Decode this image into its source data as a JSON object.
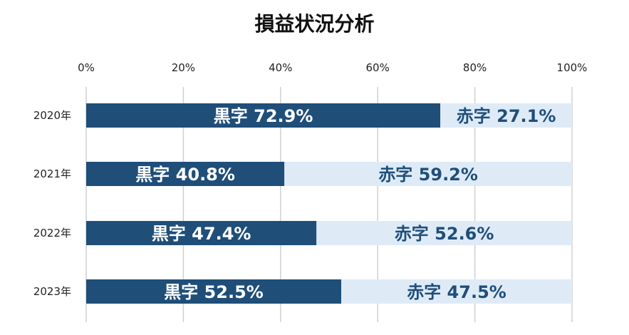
{
  "colors": {
    "surplus": "#1f4e79",
    "deficit": "#deebf7",
    "surplus_text": "#ffffff",
    "deficit_text": "#1f4e79",
    "grid": "#d0d0d0"
  },
  "chart_data": {
    "type": "bar",
    "orientation": "horizontal",
    "stacked": true,
    "title": "損益状況分析",
    "xlim": [
      0,
      100
    ],
    "xticks": [
      0,
      20,
      40,
      60,
      80,
      100
    ],
    "xtick_labels": [
      "0%",
      "20%",
      "40%",
      "60%",
      "80%",
      "100%"
    ],
    "grid": true,
    "categories": [
      "2020年",
      "2021年",
      "2022年",
      "2023年"
    ],
    "series": [
      {
        "name": "黒字",
        "values": [
          72.9,
          40.8,
          47.4,
          52.5
        ],
        "labels": [
          "黒字 72.9%",
          "黒字 40.8%",
          "黒字 47.4%",
          "黒字 52.5%"
        ]
      },
      {
        "name": "赤字",
        "values": [
          27.1,
          59.2,
          52.6,
          47.5
        ],
        "labels": [
          "赤字 27.1%",
          "赤字 59.2%",
          "赤字 52.6%",
          "赤字 47.5%"
        ]
      }
    ]
  }
}
